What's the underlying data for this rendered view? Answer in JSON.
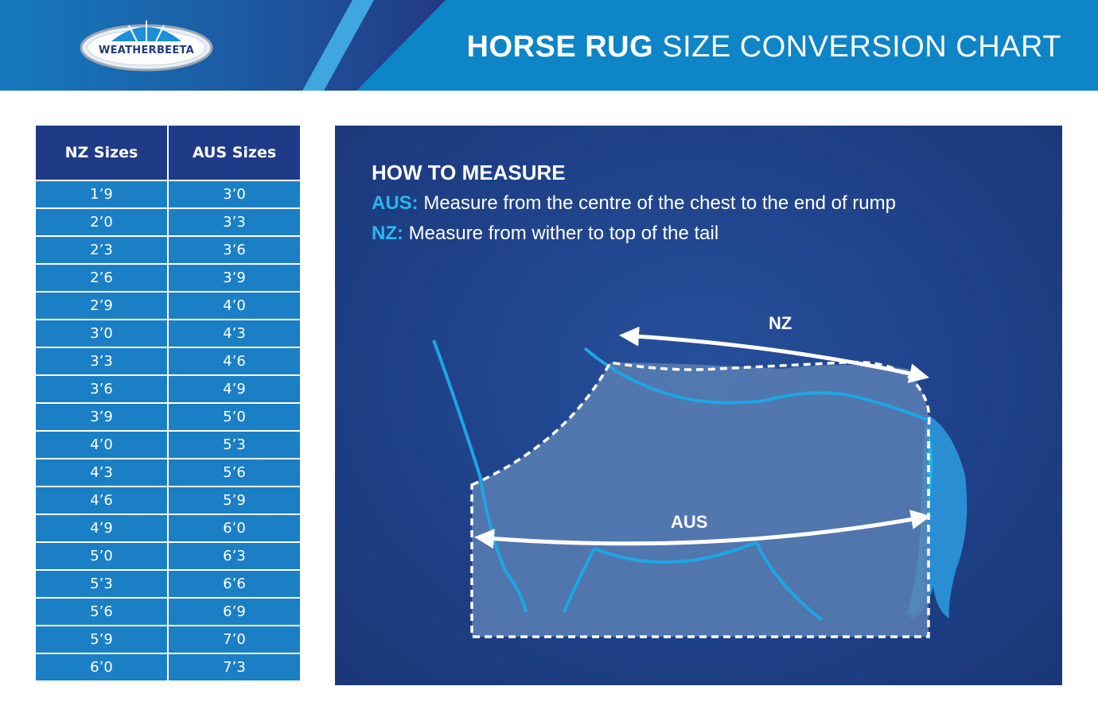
{
  "header": {
    "brand": "WEATHERBEETA",
    "title_strong": "HORSE RUG",
    "title_light": "SIZE CONVERSION CHART"
  },
  "table": {
    "columns": [
      "NZ Sizes",
      "AUS Sizes"
    ],
    "rows": [
      [
        "1’9",
        "3’0"
      ],
      [
        "2’0",
        "3’3"
      ],
      [
        "2’3",
        "3’6"
      ],
      [
        "2’6",
        "3’9"
      ],
      [
        "2’9",
        "4’0"
      ],
      [
        "3’0",
        "4’3"
      ],
      [
        "3’3",
        "4’6"
      ],
      [
        "3’6",
        "4’9"
      ],
      [
        "3’9",
        "5’0"
      ],
      [
        "4’0",
        "5’3"
      ],
      [
        "4’3",
        "5’6"
      ],
      [
        "4’6",
        "5’9"
      ],
      [
        "4’9",
        "6’0"
      ],
      [
        "5’0",
        "6’3"
      ],
      [
        "5’3",
        "6’6"
      ],
      [
        "5’6",
        "6’9"
      ],
      [
        "5’9",
        "7’0"
      ],
      [
        "6’0",
        "7’3"
      ]
    ]
  },
  "panel": {
    "heading": "HOW TO MEASURE",
    "aus_key": "AUS:",
    "aus_text": " Measure from the centre of the chest to the end of rump",
    "nz_key": "NZ:",
    "nz_text": " Measure from wither to top of the tail",
    "diagram_nz_label": "NZ",
    "diagram_aus_label": "AUS"
  },
  "colors": {
    "header_blue": "#0d85c7",
    "table_header": "#1f3a87",
    "table_cell": "#1b7fc5",
    "panel_bg": "#1f4189",
    "accent_cyan": "#29b8ef"
  }
}
